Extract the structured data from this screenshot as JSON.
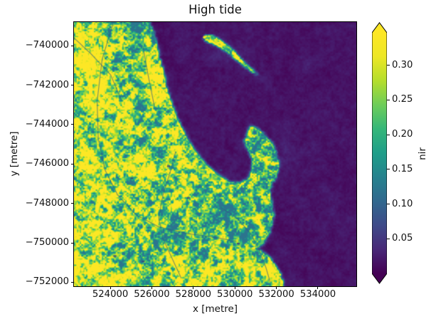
{
  "title": "High tide",
  "axes": {
    "xlabel": "x [metre]",
    "ylabel": "y [metre]"
  },
  "chart_data": {
    "type": "heatmap",
    "title": "High tide",
    "xlabel": "x [metre]",
    "ylabel": "y [metre]",
    "x_range": [
      522250,
      535850
    ],
    "y_range": [
      -752200,
      -738800
    ],
    "x_ticks": [
      {
        "value": 524000,
        "label": "524000"
      },
      {
        "value": 526000,
        "label": "526000"
      },
      {
        "value": 528000,
        "label": "528000"
      },
      {
        "value": 530000,
        "label": "530000"
      },
      {
        "value": 532000,
        "label": "532000"
      },
      {
        "value": 534000,
        "label": "534000"
      }
    ],
    "y_ticks": [
      {
        "value": -740000,
        "label": "−740000"
      },
      {
        "value": -742000,
        "label": "−742000"
      },
      {
        "value": -744000,
        "label": "−744000"
      },
      {
        "value": -746000,
        "label": "−746000"
      },
      {
        "value": -748000,
        "label": "−748000"
      },
      {
        "value": -750000,
        "label": "−750000"
      },
      {
        "value": -752000,
        "label": "−752000"
      }
    ],
    "colorbar": {
      "label": "nir",
      "colormap": "viridis",
      "extend": "both",
      "vmin": 0.0,
      "vmax": 0.347,
      "ticks": [
        {
          "value": 0.3,
          "label": "0.30"
        },
        {
          "value": 0.25,
          "label": "0.25"
        },
        {
          "value": 0.2,
          "label": "0.20"
        },
        {
          "value": 0.15,
          "label": "0.15"
        },
        {
          "value": 0.1,
          "label": "0.10"
        },
        {
          "value": 0.05,
          "label": "0.05"
        }
      ]
    },
    "description": "Near-infrared (nir) satellite reflectance raster at high tide: dark purple ocean bay in the upper right, vegetated/urban land (green-yellow) on the left, a pointed headland in the centre right and a small elongated island in the bay.",
    "scene": {
      "water_value": 0.048,
      "land_value": 0.7,
      "water_polygon": [
        [
          0.27,
          0.0
        ],
        [
          0.292,
          0.06
        ],
        [
          0.3,
          0.115
        ],
        [
          0.317,
          0.18
        ],
        [
          0.328,
          0.24
        ],
        [
          0.345,
          0.3
        ],
        [
          0.365,
          0.36
        ],
        [
          0.393,
          0.42
        ],
        [
          0.42,
          0.47
        ],
        [
          0.45,
          0.515
        ],
        [
          0.483,
          0.553
        ],
        [
          0.52,
          0.585
        ],
        [
          0.556,
          0.605
        ],
        [
          0.59,
          0.61
        ],
        [
          0.618,
          0.588
        ],
        [
          0.63,
          0.552
        ],
        [
          0.626,
          0.512
        ],
        [
          0.61,
          0.478
        ],
        [
          0.602,
          0.45
        ],
        [
          0.613,
          0.418
        ],
        [
          0.625,
          0.393
        ],
        [
          0.645,
          0.398
        ],
        [
          0.672,
          0.42
        ],
        [
          0.7,
          0.452
        ],
        [
          0.718,
          0.49
        ],
        [
          0.726,
          0.53
        ],
        [
          0.725,
          0.565
        ],
        [
          0.714,
          0.595
        ],
        [
          0.7,
          0.62
        ],
        [
          0.695,
          0.655
        ],
        [
          0.703,
          0.69
        ],
        [
          0.71,
          0.73
        ],
        [
          0.705,
          0.765
        ],
        [
          0.695,
          0.795
        ],
        [
          0.68,
          0.82
        ],
        [
          0.67,
          0.845
        ],
        [
          0.64,
          0.858
        ],
        [
          0.668,
          0.868
        ],
        [
          0.69,
          0.885
        ],
        [
          0.705,
          0.905
        ],
        [
          0.72,
          0.93
        ],
        [
          0.733,
          0.955
        ],
        [
          0.74,
          0.98
        ],
        [
          0.745,
          1.0
        ],
        [
          1.0,
          1.0
        ],
        [
          1.0,
          0.0
        ]
      ],
      "island_polygon": [
        [
          0.455,
          0.062
        ],
        [
          0.468,
          0.048
        ],
        [
          0.487,
          0.047
        ],
        [
          0.505,
          0.057
        ],
        [
          0.523,
          0.07
        ],
        [
          0.545,
          0.088
        ],
        [
          0.568,
          0.11
        ],
        [
          0.59,
          0.135
        ],
        [
          0.61,
          0.158
        ],
        [
          0.63,
          0.178
        ],
        [
          0.645,
          0.19
        ],
        [
          0.65,
          0.198
        ],
        [
          0.638,
          0.196
        ],
        [
          0.618,
          0.18
        ],
        [
          0.595,
          0.162
        ],
        [
          0.57,
          0.14
        ],
        [
          0.545,
          0.118
        ],
        [
          0.518,
          0.098
        ],
        [
          0.492,
          0.083
        ],
        [
          0.468,
          0.075
        ]
      ],
      "island_spit_dot": [
        0.462,
        0.057
      ],
      "land_bias": [
        {
          "c": [
            0.055,
            0.16
          ],
          "r": [
            0.1,
            0.2
          ],
          "b": 0.2
        },
        {
          "c": [
            0.03,
            0.6
          ],
          "r": [
            0.06,
            0.13
          ],
          "b": 0.2
        },
        {
          "c": [
            0.08,
            0.94
          ],
          "r": [
            0.13,
            0.1
          ],
          "b": 0.22
        },
        {
          "c": [
            0.27,
            0.415
          ],
          "r": [
            0.07,
            0.03
          ],
          "b": 0.25
        },
        {
          "c": [
            0.23,
            0.437
          ],
          "r": [
            0.115,
            0.048
          ],
          "b": -0.34,
          "rot": -0.15
        },
        {
          "c": [
            0.252,
            0.43
          ],
          "r": [
            0.04,
            0.018
          ],
          "b": -0.22
        },
        {
          "c": [
            0.43,
            0.76
          ],
          "r": [
            0.17,
            0.13
          ],
          "b": -0.16
        },
        {
          "c": [
            0.5,
            0.66
          ],
          "r": [
            0.09,
            0.06
          ],
          "b": -0.12
        },
        {
          "c": [
            0.36,
            0.94
          ],
          "r": [
            0.12,
            0.07
          ],
          "b": 0.18
        },
        {
          "c": [
            0.415,
            0.565
          ],
          "r": [
            0.07,
            0.05
          ],
          "b": 0.15
        },
        {
          "c": [
            0.185,
            0.1
          ],
          "r": [
            0.05,
            0.12
          ],
          "b": -0.1
        },
        {
          "c": [
            0.228,
            0.045
          ],
          "r": [
            0.013,
            0.05
          ],
          "b": -0.5
        },
        {
          "c": [
            0.52,
            0.09
          ],
          "r": [
            0.1,
            0.06
          ],
          "b": 0.1
        },
        {
          "c": [
            0.715,
            0.925
          ],
          "r": [
            0.03,
            0.022
          ],
          "b": 0.35
        },
        {
          "c": [
            0.68,
            0.55
          ],
          "r": [
            0.05,
            0.07
          ],
          "b": 0.06
        },
        {
          "c": [
            0.16,
            0.72
          ],
          "r": [
            0.1,
            0.1
          ],
          "b": 0.12
        },
        {
          "c": [
            0.3,
            0.22
          ],
          "r": [
            0.08,
            0.1
          ],
          "b": 0.1
        },
        {
          "c": [
            0.47,
            0.97
          ],
          "r": [
            0.1,
            0.05
          ],
          "b": 0.15
        },
        {
          "c": [
            0.6,
            0.75
          ],
          "r": [
            0.06,
            0.1
          ],
          "b": -0.1
        }
      ],
      "water_bias": [
        {
          "c": [
            0.56,
            0.625
          ],
          "r": [
            0.1,
            0.03
          ],
          "b": 0.05
        },
        {
          "c": [
            0.75,
            0.5
          ],
          "r": [
            0.04,
            0.09
          ],
          "b": 0.04
        },
        {
          "c": [
            0.54,
            0.115
          ],
          "r": [
            0.1,
            0.05
          ],
          "b": 0.04
        },
        {
          "c": [
            0.3,
            0.4
          ],
          "r": [
            0.04,
            0.15
          ],
          "b": 0.03
        }
      ],
      "roads": [
        [
          [
            0.14,
            0.0
          ],
          [
            0.1,
            0.14
          ],
          [
            0.082,
            0.3
          ],
          [
            0.086,
            0.44
          ],
          [
            0.11,
            0.56
          ],
          [
            0.155,
            0.655
          ],
          [
            0.22,
            0.73
          ],
          [
            0.3,
            0.775
          ],
          [
            0.4,
            0.8
          ],
          [
            0.5,
            0.815
          ],
          [
            0.575,
            0.83
          ]
        ],
        [
          [
            0.36,
            0.49
          ],
          [
            0.34,
            0.57
          ],
          [
            0.315,
            0.655
          ],
          [
            0.3,
            0.74
          ],
          [
            0.315,
            0.82
          ],
          [
            0.35,
            0.9
          ],
          [
            0.38,
            0.97
          ]
        ],
        [
          [
            0.52,
            0.7
          ],
          [
            0.58,
            0.745
          ],
          [
            0.625,
            0.8
          ],
          [
            0.655,
            0.86
          ],
          [
            0.68,
            0.93
          ],
          [
            0.695,
            0.985
          ]
        ],
        [
          [
            0.245,
            0.092
          ],
          [
            0.255,
            0.16
          ],
          [
            0.27,
            0.24
          ],
          [
            0.285,
            0.32
          ]
        ],
        [
          [
            0.0,
            0.06
          ],
          [
            0.06,
            0.12
          ],
          [
            0.13,
            0.2
          ],
          [
            0.17,
            0.3
          ]
        ]
      ],
      "ponds": [
        [
          0.405,
          0.665
        ],
        [
          0.335,
          0.545
        ],
        [
          0.205,
          0.59
        ],
        [
          0.145,
          0.885
        ],
        [
          0.245,
          0.905
        ],
        [
          0.582,
          0.838
        ],
        [
          0.52,
          0.56
        ]
      ],
      "bright_strips": [
        {
          "from": [
            0.144,
            0.747
          ],
          "to": [
            0.178,
            0.717
          ],
          "w": 2.5
        }
      ]
    }
  }
}
